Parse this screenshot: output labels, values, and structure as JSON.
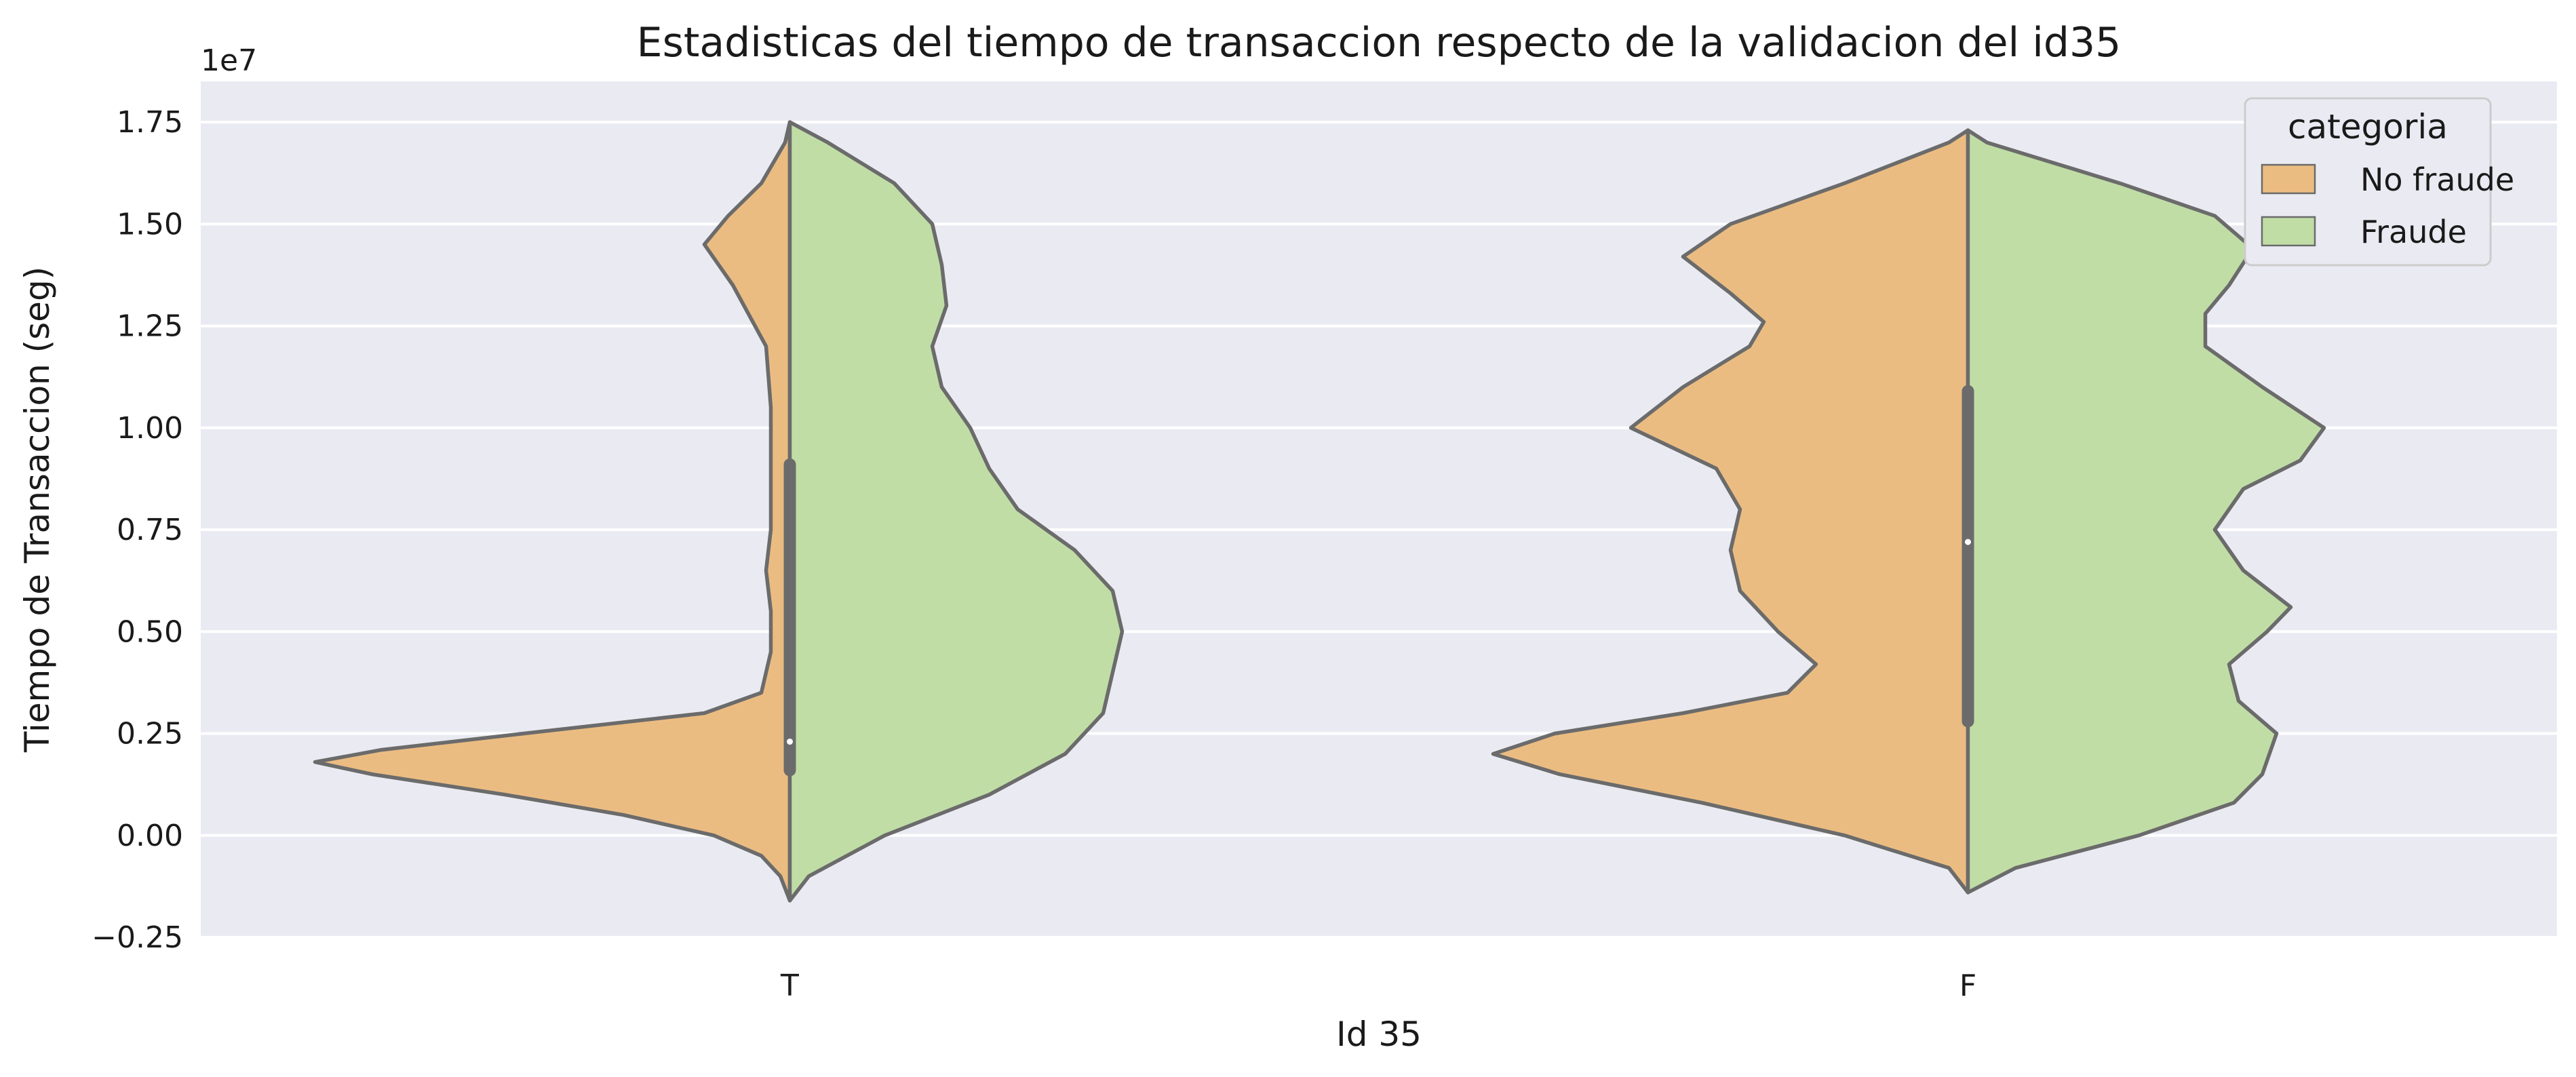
{
  "chart_data": {
    "type": "violin",
    "split": true,
    "title": "Estadisticas del tiempo de transaccion respecto de la validacion del id35",
    "xlabel": "Id 35",
    "ylabel": "Tiempo de Transaccion (seg)",
    "y_offset_label": "1e7",
    "y_scale": 10000000,
    "ylim": [
      -2500000,
      18500000
    ],
    "y_ticks": [
      -0.25,
      0.0,
      0.25,
      0.5,
      0.75,
      1.0,
      1.25,
      1.5,
      1.75
    ],
    "y_tick_labels": [
      "−0.25",
      "0.00",
      "0.25",
      "0.50",
      "0.75",
      "1.00",
      "1.25",
      "1.50",
      "1.75"
    ],
    "categories": [
      "T",
      "F"
    ],
    "grid": true,
    "legend": {
      "title": "categoria",
      "position": "top-right",
      "entries": [
        {
          "label": "No fraude",
          "color": "#ebbc82"
        },
        {
          "label": "Fraude",
          "color": "#c0dda6"
        }
      ]
    },
    "colors": {
      "background": "#eaeaf2",
      "grid": "#ffffff",
      "outline": "#6b6b6b",
      "no_fraude": "#ebbc82",
      "fraude": "#c0dda6"
    },
    "violins": [
      {
        "category": "T",
        "median": 2300000,
        "q1": 1600000,
        "q3": 9100000,
        "left_series": "No fraude",
        "right_series": "Fraude",
        "left": [
          [
            -1600000,
            0.0
          ],
          [
            -1000000,
            0.02
          ],
          [
            -500000,
            0.06
          ],
          [
            0,
            0.16
          ],
          [
            500000,
            0.35
          ],
          [
            1000000,
            0.6
          ],
          [
            1500000,
            0.88
          ],
          [
            1800000,
            1.0
          ],
          [
            2100000,
            0.86
          ],
          [
            2500000,
            0.56
          ],
          [
            3000000,
            0.18
          ],
          [
            3500000,
            0.06
          ],
          [
            4500000,
            0.04
          ],
          [
            5500000,
            0.04
          ],
          [
            6500000,
            0.05
          ],
          [
            7500000,
            0.04
          ],
          [
            9000000,
            0.04
          ],
          [
            10500000,
            0.04
          ],
          [
            12000000,
            0.05
          ],
          [
            13500000,
            0.12
          ],
          [
            14500000,
            0.18
          ],
          [
            15200000,
            0.13
          ],
          [
            16000000,
            0.06
          ],
          [
            17000000,
            0.01
          ],
          [
            17500000,
            0.0
          ]
        ],
        "right": [
          [
            -1600000,
            0.0
          ],
          [
            -1000000,
            0.04
          ],
          [
            0,
            0.2
          ],
          [
            1000000,
            0.42
          ],
          [
            2000000,
            0.58
          ],
          [
            3000000,
            0.66
          ],
          [
            4000000,
            0.68
          ],
          [
            5000000,
            0.7
          ],
          [
            6000000,
            0.68
          ],
          [
            7000000,
            0.6
          ],
          [
            8000000,
            0.48
          ],
          [
            9000000,
            0.42
          ],
          [
            10000000,
            0.38
          ],
          [
            11000000,
            0.32
          ],
          [
            12000000,
            0.3
          ],
          [
            13000000,
            0.33
          ],
          [
            14000000,
            0.32
          ],
          [
            15000000,
            0.3
          ],
          [
            16000000,
            0.22
          ],
          [
            17000000,
            0.08
          ],
          [
            17500000,
            0.0
          ]
        ]
      },
      {
        "category": "F",
        "median": 7200000,
        "q1": 2800000,
        "q3": 10900000,
        "left_series": "No fraude",
        "right_series": "Fraude",
        "left": [
          [
            -1400000,
            0.0
          ],
          [
            -800000,
            0.04
          ],
          [
            0,
            0.26
          ],
          [
            800000,
            0.56
          ],
          [
            1500000,
            0.86
          ],
          [
            2000000,
            1.0
          ],
          [
            2500000,
            0.87
          ],
          [
            3000000,
            0.6
          ],
          [
            3500000,
            0.38
          ],
          [
            4200000,
            0.32
          ],
          [
            5000000,
            0.4
          ],
          [
            6000000,
            0.48
          ],
          [
            7000000,
            0.5
          ],
          [
            8000000,
            0.48
          ],
          [
            9000000,
            0.53
          ],
          [
            10000000,
            0.71
          ],
          [
            11000000,
            0.6
          ],
          [
            12000000,
            0.46
          ],
          [
            12600000,
            0.43
          ],
          [
            13300000,
            0.5
          ],
          [
            14200000,
            0.6
          ],
          [
            15000000,
            0.5
          ],
          [
            16000000,
            0.26
          ],
          [
            17000000,
            0.04
          ],
          [
            17300000,
            0.0
          ]
        ],
        "right": [
          [
            -1400000,
            0.0
          ],
          [
            -800000,
            0.1
          ],
          [
            0,
            0.36
          ],
          [
            800000,
            0.56
          ],
          [
            1500000,
            0.62
          ],
          [
            2500000,
            0.65
          ],
          [
            3300000,
            0.57
          ],
          [
            4200000,
            0.55
          ],
          [
            5000000,
            0.63
          ],
          [
            5600000,
            0.68
          ],
          [
            6500000,
            0.58
          ],
          [
            7500000,
            0.52
          ],
          [
            8500000,
            0.58
          ],
          [
            9200000,
            0.7
          ],
          [
            10000000,
            0.75
          ],
          [
            11000000,
            0.62
          ],
          [
            12000000,
            0.5
          ],
          [
            12800000,
            0.5
          ],
          [
            13500000,
            0.55
          ],
          [
            14400000,
            0.6
          ],
          [
            15200000,
            0.52
          ],
          [
            16000000,
            0.32
          ],
          [
            17000000,
            0.04
          ],
          [
            17300000,
            0.0
          ]
        ]
      }
    ]
  }
}
